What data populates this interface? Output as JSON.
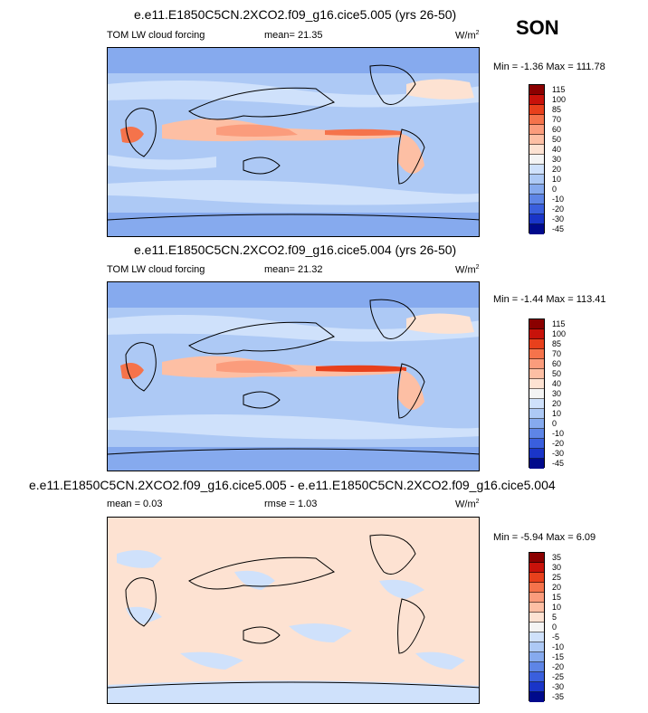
{
  "season": "SON",
  "panels": [
    {
      "title": "e.e11.E1850C5CN.2XCO2.f09_g16.cice5.005 (yrs 26-50)",
      "left_label": "TOM LW cloud forcing",
      "center_label": "mean=  21.35",
      "units": "W/m",
      "units_sup": "2",
      "minmax": "Min =  -1.36 Max = 111.78",
      "levels": [
        "115",
        "100",
        "85",
        "70",
        "60",
        "50",
        "40",
        "30",
        "20",
        "10",
        "0",
        "-10",
        "-20",
        "-30",
        "-45"
      ],
      "colors": [
        "#8b0000",
        "#c8120a",
        "#e8401c",
        "#f5734b",
        "#fb9c7c",
        "#fdbfa4",
        "#fde2d2",
        "#f4f4f4",
        "#cfe1fb",
        "#adc9f5",
        "#86aaee",
        "#5e85e6",
        "#3a5fdd",
        "#1a35c8",
        "#000a8c"
      ]
    },
    {
      "title": "e.e11.E1850C5CN.2XCO2.f09_g16.cice5.004 (yrs 26-50)",
      "left_label": "TOM LW cloud forcing",
      "center_label": "mean=  21.32",
      "units": "W/m",
      "units_sup": "2",
      "minmax": "Min =  -1.44 Max = 113.41",
      "levels": [
        "115",
        "100",
        "85",
        "70",
        "60",
        "50",
        "40",
        "30",
        "20",
        "10",
        "0",
        "-10",
        "-20",
        "-30",
        "-45"
      ],
      "colors": [
        "#8b0000",
        "#c8120a",
        "#e8401c",
        "#f5734b",
        "#fb9c7c",
        "#fdbfa4",
        "#fde2d2",
        "#f4f4f4",
        "#cfe1fb",
        "#adc9f5",
        "#86aaee",
        "#5e85e6",
        "#3a5fdd",
        "#1a35c8",
        "#000a8c"
      ]
    },
    {
      "title": "e.e11.E1850C5CN.2XCO2.f09_g16.cice5.005 - e.e11.E1850C5CN.2XCO2.f09_g16.cice5.004",
      "left_label": "mean =  0.03",
      "center_label": "rmse =  1.03",
      "units": "W/m",
      "units_sup": "2",
      "minmax": "Min =  -5.94 Max =   6.09",
      "levels": [
        "35",
        "30",
        "25",
        "20",
        "15",
        "10",
        "5",
        "0",
        "-5",
        "-10",
        "-15",
        "-20",
        "-25",
        "-30",
        "-35"
      ],
      "colors": [
        "#8b0000",
        "#c8120a",
        "#e8401c",
        "#f5734b",
        "#fb9c7c",
        "#fdbfa4",
        "#fde2d2",
        "#f4f4f4",
        "#cfe1fb",
        "#adc9f5",
        "#86aaee",
        "#5e85e6",
        "#3a5fdd",
        "#1a35c8",
        "#000a8c"
      ]
    }
  ],
  "chart_data": {
    "type": "heatmap",
    "title": "SON",
    "maps": [
      {
        "name": "e.e11.E1850C5CN.2XCO2.f09_g16.cice5.005 (yrs 26-50)",
        "variable": "TOM LW cloud forcing",
        "mean": 21.35,
        "min": -1.36,
        "max": 111.78,
        "units": "W/m2"
      },
      {
        "name": "e.e11.E1850C5CN.2XCO2.f09_g16.cice5.004 (yrs 26-50)",
        "variable": "TOM LW cloud forcing",
        "mean": 21.32,
        "min": -1.44,
        "max": 113.41,
        "units": "W/m2"
      },
      {
        "name": "difference (005 - 004)",
        "mean": 0.03,
        "rmse": 1.03,
        "min": -5.94,
        "max": 6.09,
        "units": "W/m2"
      }
    ]
  }
}
